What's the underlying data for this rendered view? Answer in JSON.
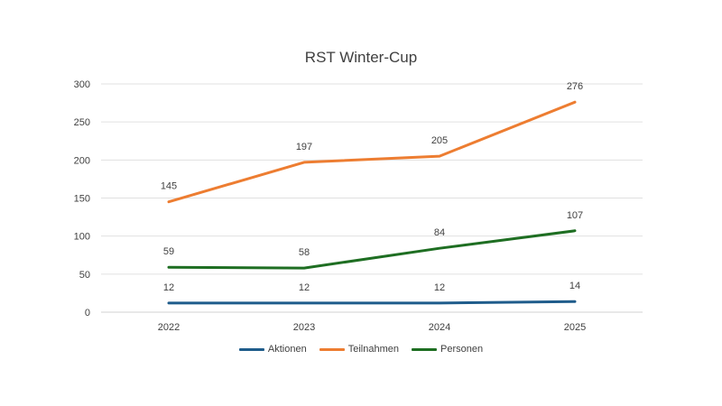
{
  "chart_data": {
    "type": "line",
    "title": "RST Winter-Cup",
    "categories": [
      "2022",
      "2023",
      "2024",
      "2025"
    ],
    "xlabel": "",
    "ylabel": "",
    "ylim": [
      0,
      300
    ],
    "yticks": [
      0,
      50,
      100,
      150,
      200,
      250,
      300
    ],
    "grid": true,
    "legend_position": "bottom",
    "series": [
      {
        "name": "Aktionen",
        "color": "#1f5c8b",
        "values": [
          12,
          12,
          12,
          14
        ]
      },
      {
        "name": "Teilnahmen",
        "color": "#ed7d31",
        "values": [
          145,
          197,
          205,
          276
        ]
      },
      {
        "name": "Personen",
        "color": "#1e6e22",
        "values": [
          59,
          58,
          84,
          107
        ]
      }
    ]
  }
}
